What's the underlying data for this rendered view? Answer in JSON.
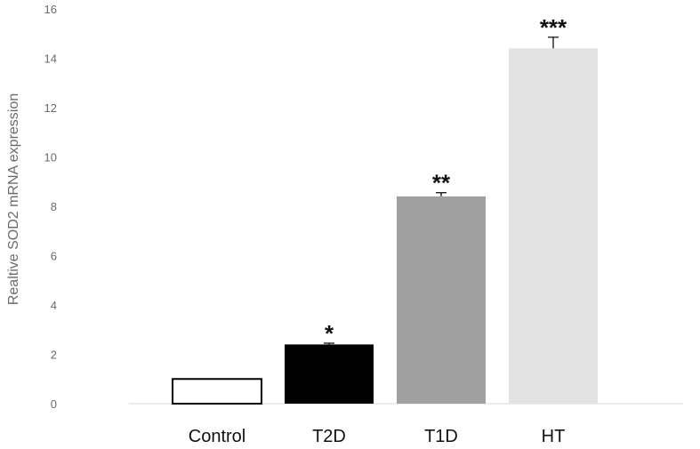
{
  "chart_data": {
    "type": "bar",
    "ylabel": "Realtive SOD2 mRNA expression",
    "ylim": [
      0,
      16
    ],
    "y_ticks": [
      "0",
      "2",
      "4",
      "6",
      "8",
      "10",
      "12",
      "14",
      "16"
    ],
    "categories": [
      "Control",
      "T2D",
      "T1D",
      "HT"
    ],
    "values": [
      1.0,
      2.4,
      8.4,
      14.4
    ],
    "errors": [
      0.0,
      0.05,
      0.15,
      0.45
    ],
    "significance": [
      "",
      "*",
      "**",
      "***"
    ],
    "colors": [
      "#ffffff",
      "#000000",
      "#a0a0a0",
      "#e3e3e3"
    ],
    "grid": false,
    "legend": "none"
  }
}
